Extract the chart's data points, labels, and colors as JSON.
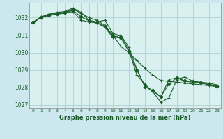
{
  "title": "Graphe pression niveau de la mer (hPa)",
  "background_color": "#cce8ee",
  "plot_bg_color": "#d9f0f0",
  "grid_color": "#a8cccc",
  "line_color": "#1a5c28",
  "x_ticks": [
    0,
    1,
    2,
    3,
    4,
    5,
    6,
    7,
    8,
    9,
    10,
    11,
    12,
    13,
    14,
    15,
    16,
    17,
    18,
    19,
    20,
    21,
    22,
    23
  ],
  "ylim": [
    1026.8,
    1032.85
  ],
  "yticks": [
    1027,
    1028,
    1029,
    1030,
    1031,
    1032
  ],
  "series": [
    {
      "x": [
        0,
        1,
        2,
        3,
        4,
        5,
        6,
        7,
        8,
        9,
        10,
        11,
        12,
        13,
        14,
        15,
        16,
        17,
        18,
        19,
        20,
        21,
        22,
        23
      ],
      "y": [
        1031.75,
        1032.0,
        1032.15,
        1032.2,
        1032.25,
        1032.35,
        1031.85,
        1031.75,
        1031.7,
        1031.45,
        1030.85,
        1031.0,
        1030.3,
        1029.05,
        1028.05,
        1027.8,
        1027.45,
        1028.45,
        1028.55,
        1028.35,
        1028.3,
        1028.25,
        1028.15,
        1028.05
      ],
      "marker": "+"
    },
    {
      "x": [
        0,
        1,
        2,
        3,
        4,
        5,
        6,
        7,
        8,
        9,
        10,
        11,
        12,
        13,
        14,
        15,
        16,
        17,
        18,
        19,
        20,
        21,
        22,
        23
      ],
      "y": [
        1031.7,
        1032.0,
        1032.2,
        1032.25,
        1032.3,
        1032.5,
        1032.25,
        1032.0,
        1031.85,
        1031.55,
        1031.0,
        1030.35,
        1030.0,
        1029.55,
        1029.1,
        1028.7,
        1028.4,
        1028.35,
        1028.3,
        1028.25,
        1028.2,
        1028.15,
        1028.1,
        1028.05
      ],
      "marker": "+"
    },
    {
      "x": [
        0,
        1,
        2,
        3,
        4,
        5,
        6,
        7,
        8,
        9
      ],
      "y": [
        1031.7,
        1032.05,
        1032.2,
        1032.3,
        1032.35,
        1032.55,
        1032.3,
        1031.85,
        1031.75,
        1031.85
      ],
      "marker": "+"
    },
    {
      "x": [
        9,
        10,
        11,
        12,
        13,
        14,
        15,
        16,
        17,
        18,
        19,
        20,
        21,
        22,
        23
      ],
      "y": [
        1031.85,
        1031.1,
        1030.95,
        1030.15,
        1028.7,
        1028.2,
        1027.75,
        1027.15,
        1027.4,
        1028.45,
        1028.6,
        1028.35,
        1028.3,
        1028.25,
        1028.15
      ],
      "marker": "+"
    },
    {
      "x": [
        0,
        1,
        2,
        3,
        4,
        5,
        6,
        7,
        8,
        9,
        10,
        11,
        12,
        13,
        14,
        15,
        16,
        17,
        18,
        19,
        20,
        21,
        22,
        23
      ],
      "y": [
        1031.72,
        1032.02,
        1032.12,
        1032.22,
        1032.28,
        1032.42,
        1032.05,
        1031.82,
        1031.72,
        1031.5,
        1030.95,
        1030.85,
        1030.05,
        1029.0,
        1028.05,
        1027.82,
        1027.48,
        1028.2,
        1028.55,
        1028.38,
        1028.35,
        1028.28,
        1028.18,
        1028.08
      ],
      "marker": "D"
    }
  ]
}
